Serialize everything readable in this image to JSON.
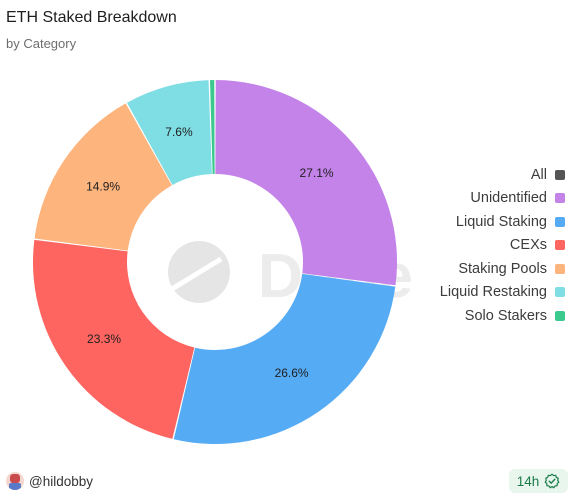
{
  "header": {
    "title": "ETH Staked Breakdown",
    "subtitle": "by Category"
  },
  "chart_data": {
    "type": "pie",
    "variant": "donut",
    "title": "ETH Staked Breakdown",
    "subtitle": "by Category",
    "slices": [
      {
        "name": "Unidentified",
        "value": 27.1,
        "label": "27.1%",
        "color": "#c383e8"
      },
      {
        "name": "Liquid Staking",
        "value": 26.6,
        "label": "26.6%",
        "color": "#56abf5"
      },
      {
        "name": "CEXs",
        "value": 23.3,
        "label": "23.3%",
        "color": "#fe6561"
      },
      {
        "name": "Staking Pools",
        "value": 14.9,
        "label": "14.9%",
        "color": "#feb47d"
      },
      {
        "name": "Liquid Restaking",
        "value": 7.6,
        "label": "7.6%",
        "color": "#7fdde4"
      },
      {
        "name": "Solo Stakers",
        "value": 0.5,
        "label": "",
        "color": "#3cc98e"
      }
    ],
    "legend_position": "right",
    "watermark": "Dune"
  },
  "legend": {
    "all_label": "All",
    "all_color": "#555555",
    "items": [
      {
        "label": "Unidentified",
        "color": "#c383e8"
      },
      {
        "label": "Liquid Staking",
        "color": "#56abf5"
      },
      {
        "label": "CEXs",
        "color": "#fe6561"
      },
      {
        "label": "Staking Pools",
        "color": "#feb47d"
      },
      {
        "label": "Liquid Restaking",
        "color": "#7fdde4"
      },
      {
        "label": "Solo Stakers",
        "color": "#3cc98e"
      }
    ]
  },
  "footer": {
    "author": "@hildobby",
    "refresh": "14h",
    "refresh_icon": "check-circle-icon"
  }
}
